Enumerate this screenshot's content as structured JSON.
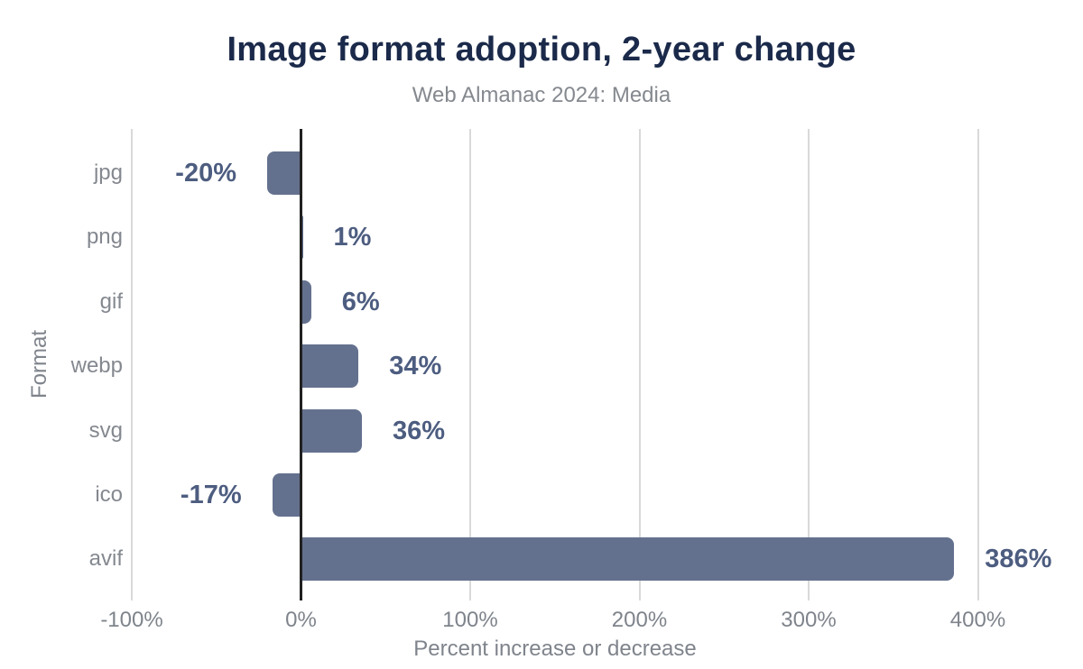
{
  "chart_data": {
    "type": "bar",
    "orientation": "horizontal",
    "title": "Image format adoption, 2-year change",
    "subtitle": "Web Almanac 2024: Media",
    "categories": [
      "jpg",
      "png",
      "gif",
      "webp",
      "svg",
      "ico",
      "avif"
    ],
    "values": [
      -20,
      1,
      6,
      34,
      36,
      -17,
      386
    ],
    "value_labels": [
      "-20%",
      "1%",
      "6%",
      "34%",
      "36%",
      "-17%",
      "386%"
    ],
    "xlabel": "Percent increase or decrease",
    "ylabel": "Format",
    "xticks": [
      -100,
      0,
      100,
      200,
      300,
      400
    ],
    "xtick_labels": [
      "-100%",
      "0%",
      "100%",
      "200%",
      "300%",
      "400%"
    ],
    "xlim": [
      -100,
      455
    ],
    "grid": "vertical-gridlines",
    "legend": "none",
    "colors": {
      "bar": "#64718e",
      "value_label": "#4d5d80",
      "title": "#1b2a4a",
      "muted_text": "#83878e",
      "gridline": "#d9d9d9",
      "zero_line": "#212121",
      "background": "#ffffff"
    }
  }
}
